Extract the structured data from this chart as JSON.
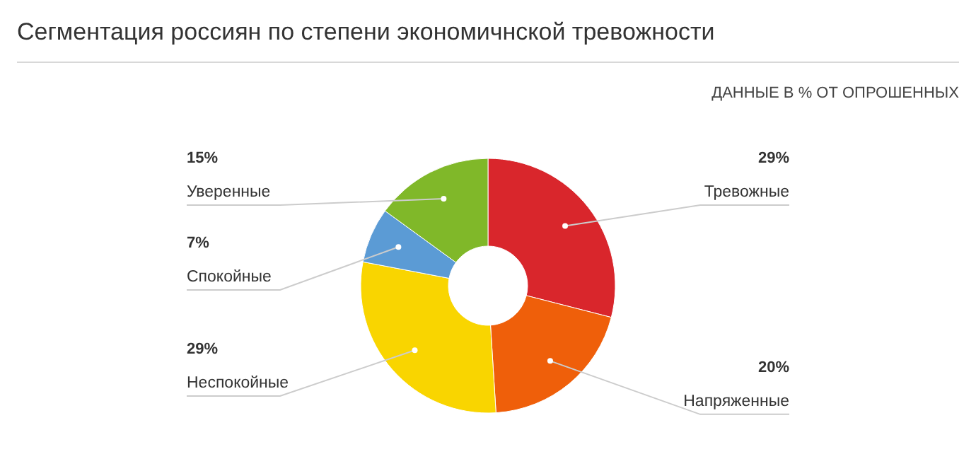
{
  "chart_data": {
    "type": "donut",
    "title": "Сегментация россиян по степени экономичнской тревожности",
    "subtitle": "ДАННЫЕ В % ОТ ОПРОШЕННЫХ",
    "categories": [
      "Тревожные",
      "Напряженные",
      "Неспокойные",
      "Спокойные",
      "Уверенные"
    ],
    "values": [
      29,
      20,
      29,
      7,
      15
    ],
    "value_labels": [
      "29%",
      "20%",
      "29%",
      "7%",
      "15%"
    ],
    "colors": [
      "#d9262c",
      "#ef5f0a",
      "#f9d500",
      "#5b9bd5",
      "#80b829"
    ]
  }
}
